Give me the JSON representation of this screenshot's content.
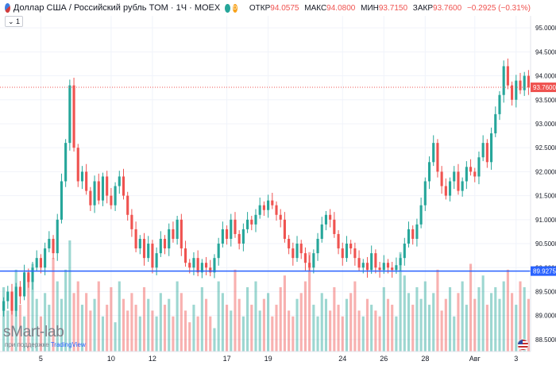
{
  "header": {
    "title": "Доллар США / Российский рубль TOM · 1Ч · MOEX",
    "dot_green": "",
    "dot_orange": "D",
    "open_label": "ОТКР",
    "open_value": "94.0575",
    "high_label": "МАКС",
    "high_value": "94.0800",
    "low_label": "МИН",
    "low_value": "93.7150",
    "close_label": "ЗАКР",
    "close_value": "93.7600",
    "change": "−0.2925 (−0.31%)"
  },
  "indicator_badge": "1",
  "watermark": "sMart-lab",
  "supported_by": "при поддержке",
  "supported_brand": "TradingView",
  "colors": {
    "up": "#26a69a",
    "down": "#ef5350",
    "support": "#2962ff",
    "price_line": "#ef5350"
  },
  "chart_data": {
    "type": "candlestick",
    "ylim": [
      88.25,
      95.25
    ],
    "y_ticks": [
      "95.0000",
      "94.5000",
      "94.0000",
      "93.5000",
      "93.0000",
      "92.5000",
      "92.0000",
      "91.5000",
      "91.0000",
      "90.5000",
      "90.0000",
      "89.5000",
      "89.0000",
      "88.5000"
    ],
    "x_ticks": [
      {
        "label": "5",
        "index": 9
      },
      {
        "label": "10",
        "index": 26
      },
      {
        "label": "12",
        "index": 36
      },
      {
        "label": "17",
        "index": 54
      },
      {
        "label": "19",
        "index": 64
      },
      {
        "label": "24",
        "index": 82
      },
      {
        "label": "26",
        "index": 92
      },
      {
        "label": "28",
        "index": 102
      },
      {
        "label": "Авг",
        "index": 114
      },
      {
        "label": "3",
        "index": 124
      }
    ],
    "last_price": {
      "label": "93.7600",
      "value": 93.76
    },
    "support_level": {
      "label": "89.9275",
      "value": 89.9275
    },
    "seed_close": 89.1,
    "closes": [
      89.3,
      89.5,
      89.1,
      89.6,
      89.4,
      89.9,
      89.7,
      90.0,
      90.2,
      90.0,
      90.4,
      90.6,
      90.3,
      91.0,
      91.8,
      92.6,
      93.8,
      92.5,
      91.8,
      92.0,
      91.6,
      91.3,
      91.8,
      91.4,
      91.9,
      91.5,
      91.3,
      91.7,
      91.9,
      91.5,
      91.1,
      90.8,
      90.4,
      90.6,
      90.2,
      90.5,
      90.0,
      90.3,
      90.6,
      90.4,
      90.8,
      90.6,
      91.0,
      90.4,
      90.1,
      90.0,
      90.2,
      89.9,
      90.1,
      90.0,
      89.9,
      90.2,
      90.5,
      90.8,
      90.6,
      91.0,
      90.7,
      90.5,
      90.8,
      91.0,
      90.9,
      91.1,
      91.3,
      91.2,
      91.4,
      91.3,
      91.1,
      91.0,
      90.6,
      90.4,
      90.2,
      90.5,
      90.3,
      90.1,
      90.0,
      90.3,
      90.6,
      90.9,
      91.1,
      91.0,
      90.7,
      90.4,
      90.2,
      90.5,
      90.4,
      90.2,
      90.0,
      90.1,
      89.95,
      90.3,
      90.0,
      89.95,
      90.1,
      90.0,
      89.95,
      90.05,
      90.2,
      90.5,
      90.8,
      90.6,
      90.9,
      91.3,
      91.8,
      92.2,
      92.6,
      92.0,
      91.7,
      91.5,
      91.8,
      92.0,
      91.6,
      91.8,
      92.1,
      92.0,
      91.9,
      92.3,
      92.6,
      92.2,
      92.8,
      93.2,
      93.6,
      94.2,
      93.8,
      93.5,
      93.9,
      93.7,
      94.0,
      93.76
    ],
    "volumes": [
      0.55,
      0.35,
      0.5,
      0.7,
      0.4,
      0.3,
      0.65,
      0.75,
      0.45,
      0.3,
      0.5,
      0.4,
      0.8,
      0.6,
      0.45,
      0.7,
      0.95,
      0.5,
      0.6,
      0.4,
      0.5,
      0.35,
      0.45,
      0.6,
      0.3,
      0.4,
      0.55,
      0.25,
      0.6,
      0.45,
      0.35,
      0.5,
      0.4,
      0.3,
      0.55,
      0.45,
      0.35,
      0.3,
      0.5,
      0.4,
      0.45,
      0.3,
      0.6,
      0.5,
      0.35,
      0.25,
      0.4,
      0.3,
      0.55,
      0.45,
      0.3,
      0.2,
      0.6,
      0.5,
      0.4,
      0.35,
      0.7,
      0.45,
      0.3,
      0.55,
      0.4,
      0.6,
      0.35,
      0.45,
      0.5,
      0.3,
      0.4,
      0.55,
      0.65,
      0.35,
      0.3,
      0.45,
      0.5,
      0.6,
      0.85,
      0.4,
      0.3,
      0.5,
      0.45,
      0.35,
      0.55,
      0.4,
      0.3,
      0.45,
      0.5,
      0.6,
      0.35,
      0.3,
      0.45,
      0.4,
      0.35,
      0.3,
      0.55,
      0.45,
      0.4,
      0.3,
      0.85,
      0.65,
      0.5,
      0.4,
      0.55,
      0.45,
      0.6,
      0.4,
      0.5,
      0.7,
      0.35,
      0.45,
      0.55,
      0.3,
      0.5,
      0.6,
      0.4,
      0.75,
      0.45,
      0.55,
      0.65,
      0.4,
      0.5,
      0.55,
      0.45,
      0.6,
      0.7,
      0.5,
      0.4,
      0.6,
      0.55,
      0.45
    ]
  }
}
